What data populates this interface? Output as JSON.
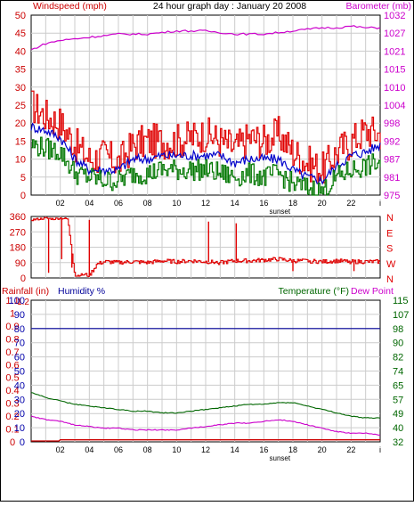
{
  "header": {
    "title": "24 hour graph day : January 20 2008",
    "left_label": "Windspeed (mph)",
    "right_label": "Barometer (mb)"
  },
  "colors": {
    "wind": "#e00000",
    "gust_avg": "#0000cc",
    "gust_low": "#007700",
    "barometer": "#cc00cc",
    "direction": "#e00000",
    "rain": "#cc0000",
    "humidity": "#000099",
    "temperature": "#006600",
    "dew_point": "#cc00cc",
    "grid": "#cccccc",
    "axis_text_left": "#cc0000",
    "axis_text_right": "#cc00cc",
    "temp_axis": "#006600",
    "humidity_axis": "#0000aa"
  },
  "chart_data": [
    {
      "type": "line",
      "title": "24 hour graph day : January 20 2008",
      "x_tick_labels": [
        "02",
        "04",
        "06",
        "08",
        "10",
        "12",
        "14",
        "16",
        "18",
        "20",
        "22",
        "i"
      ],
      "x_annotation": "sunset",
      "ylabel_left": "Windspeed (mph)",
      "ylabel_right": "Barometer (mb)",
      "ylim_left": [
        0,
        50
      ],
      "ylim_right": [
        975,
        1032
      ],
      "y_ticks_left": [
        0,
        5,
        10,
        15,
        20,
        25,
        30,
        35,
        40,
        45,
        50
      ],
      "y_ticks_right": [
        975,
        981,
        987,
        992,
        998,
        1004,
        1010,
        1015,
        1021,
        1027,
        1032
      ],
      "grid": true,
      "series": [
        {
          "name": "Windspeed",
          "axis": "left",
          "x": [
            0,
            1,
            2,
            3,
            4,
            5,
            6,
            7,
            8,
            9,
            10,
            11,
            12,
            13,
            14,
            15,
            16,
            17,
            18,
            19,
            20,
            21,
            22,
            23,
            24
          ],
          "values": [
            25,
            22,
            20,
            14,
            10,
            11,
            9,
            14,
            15,
            15,
            15,
            16,
            17,
            15,
            13,
            16,
            15,
            17,
            12,
            9,
            7,
            12,
            15,
            18,
            17
          ]
        },
        {
          "name": "Average",
          "axis": "left",
          "x": [
            0,
            1,
            2,
            3,
            4,
            5,
            6,
            7,
            8,
            9,
            10,
            11,
            12,
            13,
            14,
            15,
            16,
            17,
            18,
            19,
            20,
            21,
            22,
            23,
            24
          ],
          "values": [
            19,
            18,
            16,
            10,
            7,
            7,
            7,
            10,
            10,
            11,
            11,
            11,
            11,
            11,
            9,
            10,
            10,
            10,
            7,
            5,
            4,
            8,
            11,
            12,
            14
          ]
        },
        {
          "name": "Low",
          "axis": "left",
          "x": [
            0,
            1,
            2,
            3,
            4,
            5,
            6,
            7,
            8,
            9,
            10,
            11,
            12,
            13,
            14,
            15,
            16,
            17,
            18,
            19,
            20,
            21,
            22,
            23,
            24
          ],
          "values": [
            14,
            13,
            12,
            6,
            5,
            4,
            4,
            6,
            6,
            7,
            7,
            7,
            7,
            6,
            5,
            6,
            5,
            6,
            3,
            2,
            1,
            5,
            7,
            8,
            9
          ]
        },
        {
          "name": "Barometer",
          "axis": "right",
          "x": [
            0,
            1,
            2,
            3,
            4,
            5,
            6,
            7,
            8,
            9,
            10,
            11,
            12,
            13,
            14,
            15,
            16,
            17,
            18,
            19,
            20,
            21,
            22,
            23,
            24
          ],
          "values": [
            1021,
            1023,
            1024,
            1024.5,
            1025,
            1025.5,
            1026,
            1026,
            1026,
            1026.5,
            1027,
            1027,
            1027,
            1026.5,
            1026,
            1026,
            1026,
            1026.5,
            1027,
            1027.5,
            1028,
            1028,
            1028.5,
            1028,
            1028
          ]
        }
      ]
    },
    {
      "type": "line",
      "title": "",
      "x_tick_labels": [],
      "ylim_left": [
        0,
        360
      ],
      "y_ticks_left": [
        0,
        90,
        180,
        270,
        360
      ],
      "y_ticks_right": [
        "N",
        "W",
        "S",
        "E",
        "N"
      ],
      "grid": true,
      "series": [
        {
          "name": "Wind direction",
          "axis": "left",
          "x": [
            0,
            0.5,
            1,
            1.5,
            2,
            2.5,
            3,
            3.5,
            4,
            4.5,
            5,
            6,
            7,
            8,
            9,
            10,
            11,
            12,
            13,
            14,
            15,
            16,
            17,
            18,
            19,
            20,
            21,
            22,
            23,
            24
          ],
          "values": [
            340,
            345,
            350,
            345,
            350,
            345,
            10,
            20,
            15,
            80,
            95,
            90,
            95,
            90,
            100,
            95,
            100,
            95,
            90,
            100,
            100,
            105,
            110,
            100,
            100,
            95,
            100,
            95,
            95,
            95
          ]
        }
      ]
    },
    {
      "type": "line",
      "title": "",
      "x_tick_labels": [
        "02",
        "04",
        "06",
        "08",
        "10",
        "12",
        "14",
        "16",
        "18",
        "20",
        "22",
        "i"
      ],
      "x_annotation": "sunset",
      "ylabel_left": "Rainfall (in)",
      "ylabel_left_2": "Humidity %",
      "ylabel_right": "Temperature (°F)",
      "ylabel_right_2": "Dew Point",
      "y_ticks_rain": [
        0,
        0.1,
        0.2,
        0.3,
        0.4,
        0.5,
        0.6,
        0.7,
        0.8,
        0.9,
        1,
        1.1,
        1.2
      ],
      "y_ticks_humidity": [
        0,
        10,
        20,
        30,
        40,
        50,
        60,
        70,
        80,
        90,
        100
      ],
      "y_ticks_temp": [
        32,
        40,
        49,
        57,
        65,
        74,
        82,
        90,
        98,
        107,
        115
      ],
      "ylim_humidity": [
        0,
        100
      ],
      "ylim_temp": [
        32,
        115
      ],
      "grid": true,
      "series": [
        {
          "name": "Rainfall",
          "axis": "rain",
          "x": [
            0,
            1.9,
            2,
            24
          ],
          "values": [
            0,
            0,
            0.01,
            0.01
          ]
        },
        {
          "name": "Humidity",
          "axis": "humidity",
          "x": [
            0,
            24
          ],
          "values": [
            80,
            80
          ]
        },
        {
          "name": "Temperature",
          "axis": "temp",
          "x": [
            0,
            1,
            2,
            3,
            4,
            5,
            6,
            7,
            8,
            9,
            10,
            11,
            12,
            13,
            14,
            15,
            16,
            17,
            18,
            19,
            20,
            21,
            22,
            23,
            24
          ],
          "values": [
            61,
            58,
            56,
            54,
            53,
            52,
            51,
            50,
            50,
            49,
            49,
            50,
            51,
            52,
            53,
            54,
            54,
            55,
            55,
            53,
            51,
            49,
            47,
            46,
            46
          ]
        },
        {
          "name": "Dew Point",
          "axis": "temp",
          "x": [
            0,
            1,
            2,
            3,
            4,
            5,
            6,
            7,
            8,
            9,
            10,
            11,
            12,
            13,
            14,
            15,
            16,
            17,
            18,
            19,
            20,
            21,
            22,
            23,
            24
          ],
          "values": [
            47,
            45,
            44,
            42,
            41,
            40,
            40,
            39,
            39,
            39,
            39,
            40,
            41,
            42,
            43,
            43,
            44,
            45,
            44,
            42,
            40,
            38,
            37,
            37,
            36
          ]
        }
      ]
    }
  ]
}
